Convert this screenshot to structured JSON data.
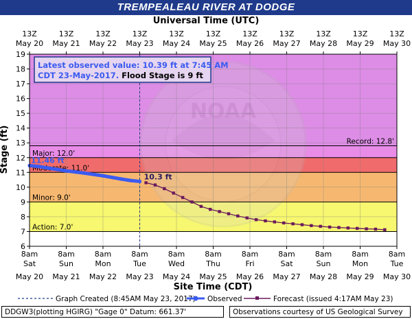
{
  "title": "TREMPEALEAU RIVER AT DODGE",
  "top_axis_title": "Universal Time (UTC)",
  "bottom_axis_title": "Site Time (CDT)",
  "ylabel": "Stage (ft)",
  "colors": {
    "title_bg": "#1f3a8a",
    "record_band": "#dd8de6",
    "major_band": "#e88ce8",
    "moderate_band": "#f06b6b",
    "minor_band": "#f6b870",
    "action_band": "#f7f770",
    "normal_band": "#ffffff",
    "observed": "#3b5bf0",
    "forecast": "#6b1a5c",
    "callout_border": "#1f3a8a"
  },
  "callout": {
    "line1": "Latest observed value: 10.39 ft at 7:45 AM",
    "line2_date": "CDT 23-May-2017.",
    "line2_flood": " Flood Stage is 9 ft"
  },
  "watermark_text": "NOAA",
  "footer": {
    "left": "DDGW3(plotting HGIRG) \"Gage 0\" Datum: 661.37'",
    "right": "Observations courtesy of US Geological Survey"
  },
  "legend": {
    "created": "Graph Created (8:45AM May 23, 2017)",
    "observed": "Observed",
    "forecast": "Forecast (issued 4:17AM May 23)"
  },
  "chart_data": {
    "type": "line",
    "xlim_days": [
      20,
      30
    ],
    "ylim": [
      6,
      19
    ],
    "yticks": [
      6,
      7,
      8,
      9,
      10,
      11,
      12,
      13,
      14,
      15,
      16,
      17,
      18,
      19
    ],
    "top_ticks": [
      {
        "day": 20,
        "time": "13Z",
        "date": "May 20"
      },
      {
        "day": 21,
        "time": "13Z",
        "date": "May 21"
      },
      {
        "day": 22,
        "time": "13Z",
        "date": "May 22"
      },
      {
        "day": 23,
        "time": "13Z",
        "date": "May 23"
      },
      {
        "day": 24,
        "time": "13Z",
        "date": "May 24"
      },
      {
        "day": 25,
        "time": "13Z",
        "date": "May 25"
      },
      {
        "day": 26,
        "time": "13Z",
        "date": "May 26"
      },
      {
        "day": 27,
        "time": "13Z",
        "date": "May 27"
      },
      {
        "day": 28,
        "time": "13Z",
        "date": "May 28"
      },
      {
        "day": 29,
        "time": "13Z",
        "date": "May 29"
      },
      {
        "day": 30,
        "time": "13Z",
        "date": "May 30"
      }
    ],
    "bottom_ticks": [
      {
        "day": 20,
        "time": "8am",
        "weekday": "Sat",
        "date": "May 20"
      },
      {
        "day": 21,
        "time": "8am",
        "weekday": "Sun",
        "date": "May 21"
      },
      {
        "day": 22,
        "time": "8am",
        "weekday": "Mon",
        "date": "May 22"
      },
      {
        "day": 23,
        "time": "8am",
        "weekday": "Tue",
        "date": "May 23"
      },
      {
        "day": 24,
        "time": "8am",
        "weekday": "Wed",
        "date": "May 24"
      },
      {
        "day": 25,
        "time": "8am",
        "weekday": "Thu",
        "date": "May 25"
      },
      {
        "day": 26,
        "time": "8am",
        "weekday": "Fri",
        "date": "May 26"
      },
      {
        "day": 27,
        "time": "8am",
        "weekday": "Sat",
        "date": "May 27"
      },
      {
        "day": 28,
        "time": "8am",
        "weekday": "Sun",
        "date": "May 28"
      },
      {
        "day": 29,
        "time": "8am",
        "weekday": "Mon",
        "date": "May 29"
      },
      {
        "day": 30,
        "time": "8am",
        "weekday": "Tue",
        "date": "May 30"
      }
    ],
    "stages": [
      {
        "name": "Record: 12.8'",
        "value": 12.8
      },
      {
        "name": "Major: 12.0'",
        "value": 12.0
      },
      {
        "name": "Moderate: 11.0'",
        "value": 11.0
      },
      {
        "name": "Minor: 9.0'",
        "value": 9.0
      },
      {
        "name": "Action: 7.0'",
        "value": 7.0
      }
    ],
    "graph_created_day": 23,
    "first_obs_label": "11.46 ft",
    "forecast_peak_label": "10.3 ft",
    "observed": {
      "x": [
        20.0,
        20.25,
        20.5,
        20.75,
        21.0,
        21.25,
        21.5,
        21.75,
        22.0,
        22.25,
        22.5,
        22.75,
        23.0
      ],
      "y": [
        11.46,
        11.4,
        11.3,
        11.2,
        11.1,
        11.03,
        10.95,
        10.86,
        10.77,
        10.66,
        10.55,
        10.45,
        10.39
      ]
    },
    "forecast": {
      "x": [
        23.17,
        23.42,
        23.67,
        23.92,
        24.17,
        24.42,
        24.67,
        24.92,
        25.17,
        25.42,
        25.67,
        25.92,
        26.17,
        26.42,
        26.67,
        26.92,
        27.17,
        27.42,
        27.67,
        27.92,
        28.17,
        28.42,
        28.67,
        28.92,
        29.17,
        29.42,
        29.67
      ],
      "y": [
        10.3,
        10.15,
        9.9,
        9.6,
        9.3,
        9.0,
        8.7,
        8.5,
        8.35,
        8.2,
        8.05,
        7.92,
        7.8,
        7.72,
        7.65,
        7.58,
        7.52,
        7.46,
        7.4,
        7.35,
        7.3,
        7.27,
        7.24,
        7.21,
        7.18,
        7.16,
        7.12
      ]
    }
  }
}
